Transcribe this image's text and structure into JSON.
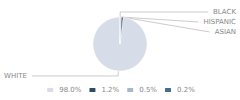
{
  "chart_data": {
    "type": "pie",
    "categories": [
      "WHITE",
      "ASIAN",
      "HISPANIC",
      "BLACK"
    ],
    "values": [
      98.0,
      1.2,
      0.5,
      0.2
    ],
    "value_labels": [
      "98.0%",
      "1.2%",
      "0.5%",
      "0.2%"
    ],
    "colors": [
      "#d6dde8",
      "#2e4a6b",
      "#a8b8cc",
      "#4a6a8a"
    ],
    "legend": "bottom"
  }
}
